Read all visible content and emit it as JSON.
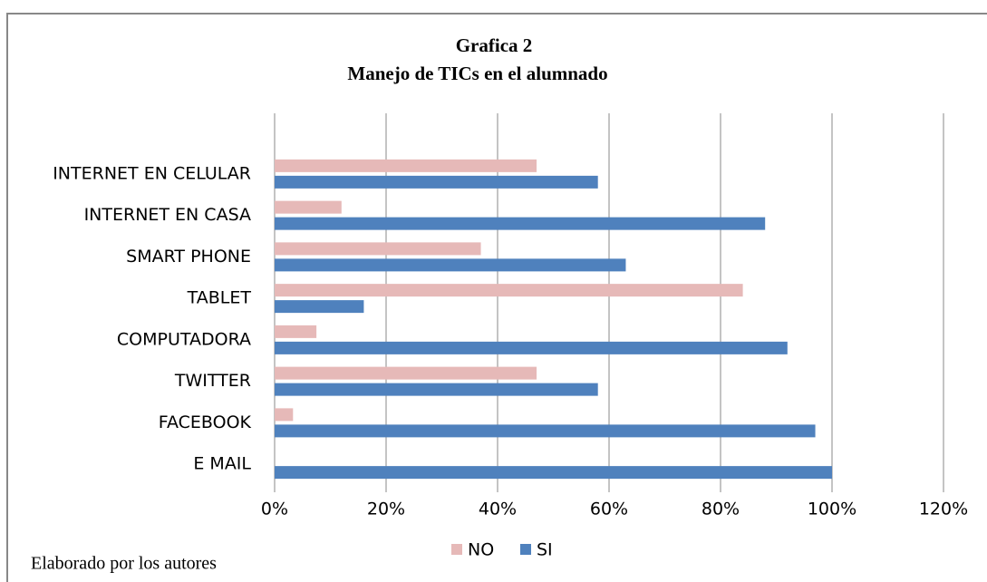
{
  "chart_data": {
    "type": "bar",
    "orientation": "horizontal",
    "title": "Grafica 2",
    "subtitle": "Manejo de TICs en el alumnado",
    "categories": [
      "INTERNET EN CELULAR",
      "INTERNET EN CASA",
      "SMART PHONE",
      "TABLET",
      "COMPUTADORA",
      "TWITTER",
      "FACEBOOK",
      "E MAIL"
    ],
    "series": [
      {
        "name": "NO",
        "color": "#e6b9b8",
        "values": [
          47,
          12,
          37,
          84,
          7.5,
          47,
          3.3,
          0
        ]
      },
      {
        "name": "SI",
        "color": "#4f81bd",
        "values": [
          58,
          88,
          63,
          16,
          92,
          58,
          97,
          100
        ]
      }
    ],
    "xlim": [
      0,
      120
    ],
    "xticks": [
      {
        "value": 0,
        "label": "0%"
      },
      {
        "value": 20,
        "label": "20%"
      },
      {
        "value": 40,
        "label": "40%"
      },
      {
        "value": 60,
        "label": "60%"
      },
      {
        "value": 80,
        "label": "80%"
      },
      {
        "value": 100,
        "label": "100%"
      },
      {
        "value": 120,
        "label": "120%"
      }
    ],
    "grid": true,
    "legend": "bottom",
    "note": "Elaborado por los autores"
  }
}
